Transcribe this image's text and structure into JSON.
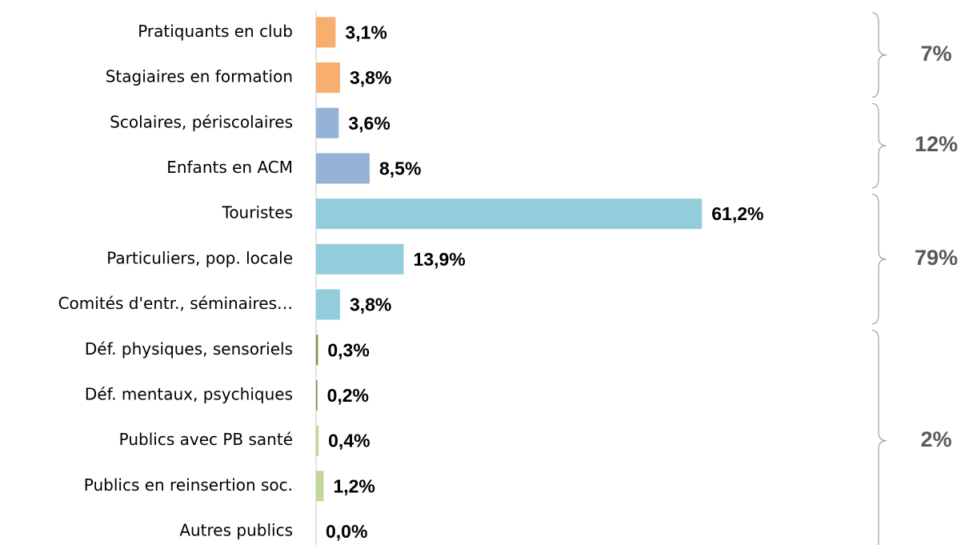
{
  "chart_data": {
    "type": "bar",
    "orientation": "horizontal",
    "categories": [
      "Pratiquants en club",
      "Stagiaires en formation",
      "Scolaires, périscolaires",
      "Enfants en ACM",
      "Touristes",
      "Particuliers, pop. locale",
      "Comités d'entr., séminaires…",
      "Déf. physiques, sensoriels",
      "Déf. mentaux, psychiques",
      "Publics avec PB santé",
      "Publics en reinsertion soc.",
      "Autres publics"
    ],
    "values": [
      3.1,
      3.8,
      3.6,
      8.5,
      61.2,
      13.9,
      3.8,
      0.3,
      0.2,
      0.4,
      1.2,
      0.0
    ],
    "value_labels": [
      "3,1%",
      "3,8%",
      "3,6%",
      "8,5%",
      "61,2%",
      "13,9%",
      "3,8%",
      "0,3%",
      "0,2%",
      "0,4%",
      "1,2%",
      "0,0%"
    ],
    "colors": [
      "#f7ae6e",
      "#f7ae6e",
      "#95b3d7",
      "#95b3d7",
      "#92cddc",
      "#92cddc",
      "#92cddc",
      "#77933c",
      "#77933c",
      "#c3d69b",
      "#c3d69b",
      "#c3d69b"
    ],
    "xlim": [
      0,
      100
    ],
    "groups": [
      {
        "label": "7%",
        "members": [
          "Pratiquants en club",
          "Stagiaires en formation"
        ]
      },
      {
        "label": "12%",
        "members": [
          "Scolaires, périscolaires",
          "Enfants en ACM"
        ]
      },
      {
        "label": "79%",
        "members": [
          "Touristes",
          "Particuliers, pop. locale",
          "Comités d'entr., séminaires…"
        ]
      },
      {
        "label": "2%",
        "members": [
          "Déf. physiques, sensoriels",
          "Déf. mentaux, psychiques",
          "Publics avec PB santé",
          "Publics en reinsertion soc.",
          "Autres publics"
        ]
      }
    ]
  }
}
